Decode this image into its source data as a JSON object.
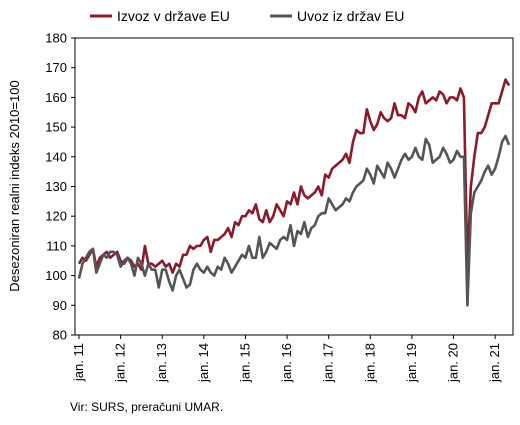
{
  "chart_data": {
    "type": "line",
    "ylabel": "Desezoniran realni indeks 2010=100",
    "xlabel": "",
    "ylim": [
      80,
      180
    ],
    "y_ticks": [
      80,
      90,
      100,
      110,
      120,
      130,
      140,
      150,
      160,
      170,
      180
    ],
    "x_tick_labels": [
      "jan. 11",
      "jan. 12",
      "jan. 13",
      "jan. 14",
      "jan. 15",
      "jan. 16",
      "jan. 17",
      "jan. 18",
      "jan. 19",
      "jan. 20",
      "jan. 21"
    ],
    "x_start": "2011-01",
    "months": 125,
    "grid": false,
    "legend_position": "top",
    "source": "Vir: SURS, preračuni UMAR.",
    "series": [
      {
        "name": "Izvoz v države EU",
        "color": "#8B1A2B",
        "values": [
          104,
          106,
          105,
          107,
          109,
          103,
          106,
          107,
          108,
          106,
          107,
          108,
          105,
          104,
          106,
          105,
          103,
          104,
          102,
          110,
          104,
          104,
          103,
          104,
          105,
          103,
          104,
          101,
          104,
          103,
          107,
          107,
          110,
          109,
          110,
          110,
          112,
          113,
          108,
          112,
          112,
          113,
          114,
          116,
          113,
          118,
          117,
          120,
          120,
          122,
          121,
          124,
          119,
          118,
          122,
          118,
          120,
          124,
          122,
          120,
          125,
          124,
          128,
          124,
          130,
          127,
          126,
          127,
          128,
          130,
          127,
          134,
          133,
          136,
          137,
          138,
          139,
          141,
          138,
          145,
          149,
          148,
          148,
          156,
          152,
          149,
          151,
          155,
          153,
          152,
          153,
          158,
          154,
          154,
          153,
          158,
          157,
          155,
          160,
          162,
          158,
          159,
          160,
          159,
          162,
          161,
          158,
          160,
          160,
          159,
          163,
          160,
          103,
          130,
          140,
          148,
          148,
          150,
          154,
          158,
          158,
          158,
          162,
          166,
          164
        ]
      },
      {
        "name": "Uvoz iz držav EU",
        "color": "#555555",
        "values": [
          99,
          104,
          106,
          108,
          109,
          101,
          104,
          107,
          106,
          108,
          108,
          107,
          103,
          105,
          106,
          104,
          100,
          106,
          104,
          100,
          104,
          102,
          102,
          96,
          102,
          102,
          98,
          95,
          100,
          102,
          99,
          96,
          97,
          102,
          104,
          102,
          101,
          103,
          101,
          100,
          103,
          102,
          106,
          104,
          101,
          103,
          105,
          107,
          106,
          110,
          106,
          106,
          113,
          106,
          108,
          111,
          110,
          109,
          112,
          113,
          112,
          117,
          110,
          115,
          114,
          118,
          113,
          116,
          117,
          120,
          121,
          121,
          126,
          124,
          122,
          123,
          124,
          126,
          125,
          128,
          130,
          131,
          132,
          136,
          134,
          131,
          137,
          135,
          133,
          138,
          136,
          133,
          136,
          139,
          141,
          139,
          140,
          143,
          140,
          139,
          146,
          144,
          138,
          139,
          140,
          143,
          141,
          138,
          139,
          142,
          140,
          140,
          90,
          121,
          128,
          130,
          132,
          135,
          137,
          134,
          136,
          140,
          145,
          147,
          144
        ]
      }
    ]
  }
}
